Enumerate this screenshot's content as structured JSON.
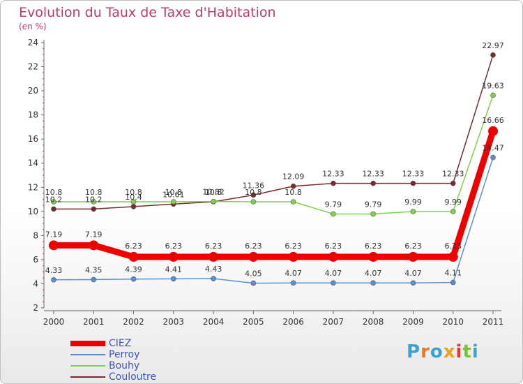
{
  "title": "Evolution du Taux de Taxe d'Habitation",
  "unit": "(en %)",
  "logo_text": "Proxiti",
  "chart_data": {
    "type": "line",
    "title": "Evolution du Taux de Taxe d'Habitation",
    "ylabel": "(en %)",
    "ylim": [
      2,
      24
    ],
    "yticks": [
      2,
      4,
      6,
      8,
      10,
      12,
      14,
      16,
      18,
      20,
      22,
      24
    ],
    "x": [
      "2000",
      "2001",
      "2002",
      "2003",
      "2004",
      "2005",
      "2006",
      "2007",
      "2008",
      "2009",
      "2010",
      "2011"
    ],
    "grid": false,
    "legend_position": "bottom-left",
    "series": [
      {
        "name": "CIEZ",
        "color": "#ee0000",
        "values": [
          7.19,
          7.19,
          6.23,
          6.23,
          6.23,
          6.23,
          6.23,
          6.23,
          6.23,
          6.23,
          6.23,
          16.66
        ],
        "labels": [
          "7.19",
          "7.19",
          "6.23",
          "6.23",
          "6.23",
          "6.23",
          "6.23",
          "6.23",
          "6.23",
          "6.23",
          "6.23",
          "16.66"
        ]
      },
      {
        "name": "Perroy",
        "color": "#5b8fcb",
        "values": [
          4.33,
          4.35,
          4.39,
          4.41,
          4.43,
          4.05,
          4.07,
          4.07,
          4.07,
          4.07,
          4.11,
          14.47
        ],
        "labels": [
          "4.33",
          "4.35",
          "4.39",
          "4.41",
          "4.43",
          "4.05",
          "4.07",
          "4.07",
          "4.07",
          "4.07",
          "4.11",
          "14.47"
        ]
      },
      {
        "name": "Bouhy",
        "color": "#7fd04a",
        "values": [
          10.8,
          10.8,
          10.8,
          10.8,
          10.82,
          10.8,
          10.8,
          9.79,
          9.79,
          9.99,
          9.99,
          19.63
        ],
        "labels": [
          "10.8",
          "10.8",
          "10.8",
          "10.8",
          "10.82",
          "10.8",
          "10.8",
          "9.79",
          "9.79",
          "9.99",
          "9.99",
          "19.63"
        ]
      },
      {
        "name": "Couloutre",
        "color": "#7a2a2a",
        "values": [
          10.2,
          10.2,
          10.4,
          10.61,
          10.8,
          11.36,
          12.09,
          12.33,
          12.33,
          12.33,
          12.33,
          22.97
        ],
        "labels": [
          "10.2",
          "10.2",
          "10.4",
          "10.61",
          "10.8",
          "11.36",
          "12.09",
          "12.33",
          "12.33",
          "12.33",
          "12.33",
          "22.97"
        ]
      }
    ]
  }
}
